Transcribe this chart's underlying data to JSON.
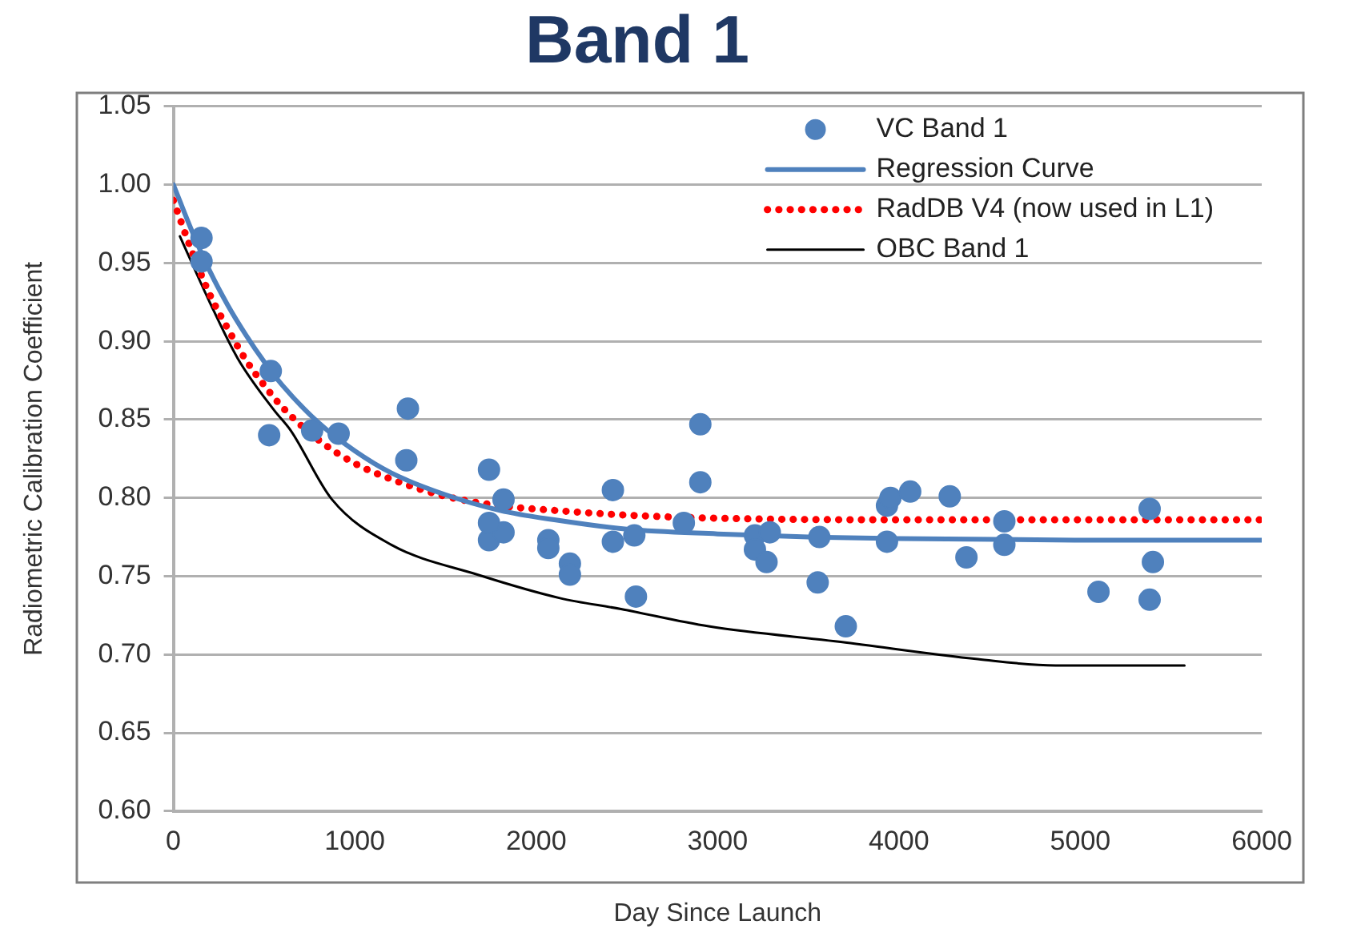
{
  "chart_data": {
    "type": "scatter",
    "title": "Band 1",
    "xlabel": "Day Since Launch",
    "ylabel": "Radiometric Calibration Coefficient",
    "xlim": [
      0,
      6000
    ],
    "xticks": [
      0,
      1000,
      2000,
      3000,
      4000,
      5000,
      6000
    ],
    "ylim": [
      0.6,
      1.05
    ],
    "yticks": [
      {
        "value": 0.6,
        "label": "0.60"
      },
      {
        "value": 0.65,
        "label": "0.65"
      },
      {
        "value": 0.7,
        "label": "0.70"
      },
      {
        "value": 0.75,
        "label": "0.75"
      },
      {
        "value": 0.8,
        "label": "0.80"
      },
      {
        "value": 0.85,
        "label": "0.85"
      },
      {
        "value": 0.9,
        "label": "0.90"
      },
      {
        "value": 0.95,
        "label": "0.95"
      },
      {
        "value": 1.0,
        "label": "1.00"
      },
      {
        "value": 1.05,
        "label": "1.05"
      }
    ],
    "grid": "y",
    "legend": "top right",
    "series": [
      {
        "name": "VC Band 1",
        "type": "scatter",
        "marker": "circle",
        "color": "#4f81bd",
        "x": [
          155,
          155,
          537,
          528,
          765,
          911,
          1293,
          1284,
          1740,
          1820,
          1740,
          1820,
          1740,
          2067,
          2067,
          2186,
          2186,
          2423,
          2423,
          2541,
          2550,
          2814,
          2905,
          2905,
          3206,
          3206,
          3270,
          3288,
          3561,
          3552,
          3707,
          3934,
          3953,
          3934,
          4062,
          4280,
          4372,
          4581,
          4581,
          5100,
          5382,
          5400,
          5382
        ],
        "values": [
          0.966,
          0.951,
          0.881,
          0.84,
          0.843,
          0.841,
          0.857,
          0.824,
          0.818,
          0.799,
          0.773,
          0.778,
          0.784,
          0.773,
          0.768,
          0.758,
          0.751,
          0.805,
          0.772,
          0.776,
          0.737,
          0.784,
          0.847,
          0.81,
          0.776,
          0.767,
          0.759,
          0.778,
          0.775,
          0.746,
          0.718,
          0.795,
          0.8,
          0.772,
          0.804,
          0.801,
          0.762,
          0.785,
          0.77,
          0.74,
          0.793,
          0.759,
          0.735
        ]
      },
      {
        "name": "Regression Curve",
        "type": "line",
        "line_style": "solid",
        "color": "#4f81bd",
        "x": [
          0,
          100,
          200,
          300,
          400,
          500,
          600,
          800,
          1000,
          1200,
          1500,
          1800,
          2100,
          2500,
          3000,
          3500,
          4000,
          5000,
          6000
        ],
        "values": [
          1.0,
          0.971,
          0.945,
          0.923,
          0.904,
          0.887,
          0.872,
          0.848,
          0.83,
          0.816,
          0.802,
          0.792,
          0.786,
          0.78,
          0.777,
          0.775,
          0.774,
          0.773,
          0.773
        ]
      },
      {
        "name": "RadDB V4 (now used in L1)",
        "type": "line",
        "line_style": "dotted",
        "color": "#ff0000",
        "x": [
          0,
          100,
          200,
          300,
          400,
          500,
          600,
          800,
          1000,
          1200,
          1500,
          1800,
          2100,
          2500,
          3000,
          4000,
          6000
        ],
        "values": [
          0.99,
          0.958,
          0.93,
          0.908,
          0.888,
          0.872,
          0.858,
          0.837,
          0.822,
          0.812,
          0.801,
          0.795,
          0.792,
          0.789,
          0.787,
          0.786,
          0.786
        ]
      },
      {
        "name": "OBC Band 1",
        "type": "line",
        "line_style": "solid",
        "color": "#000000",
        "x": [
          36,
          200,
          355,
          555,
          647,
          874,
          1202,
          1676,
          2131,
          2468,
          2951,
          3679,
          4435,
          4863,
          5574
        ],
        "values": [
          0.967,
          0.925,
          0.889,
          0.856,
          0.843,
          0.799,
          0.77,
          0.751,
          0.736,
          0.729,
          0.718,
          0.708,
          0.697,
          0.693,
          0.693
        ]
      }
    ]
  }
}
